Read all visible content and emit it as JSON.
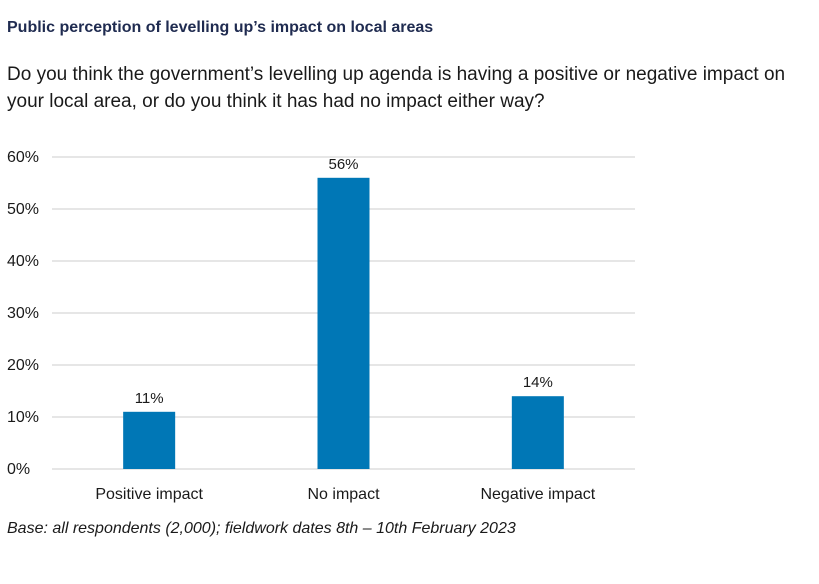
{
  "header": {
    "title": "Public perception of levelling up’s impact on local areas",
    "subtitle": "Do you think the government’s levelling up agenda is having a positive or negative impact on your local area, or do you think it has had no impact either way?"
  },
  "footnote": "Base: all respondents (2,000); fieldwork dates 8th – 10th February 2023",
  "chart_data": {
    "type": "bar",
    "categories": [
      "Positive impact",
      "No impact",
      "Negative impact"
    ],
    "values": [
      11,
      56,
      14
    ],
    "data_labels": [
      "11%",
      "56%",
      "14%"
    ],
    "ylim": [
      0,
      60
    ],
    "yticks": [
      0,
      10,
      20,
      30,
      40,
      50,
      60
    ],
    "ytick_labels": [
      "0%",
      "10%",
      "20%",
      "30%",
      "40%",
      "50%",
      "60%"
    ],
    "xlabel": "",
    "ylabel": "",
    "grid": true,
    "legend": "none",
    "bar_color": "#0077b6",
    "grid_color": "#cccccc"
  }
}
